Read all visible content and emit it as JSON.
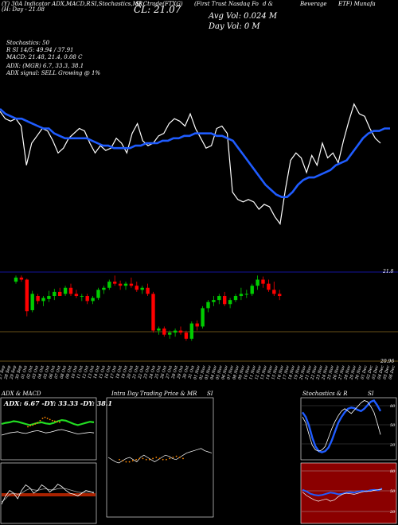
{
  "header": {
    "line1": [
      "(Y) 30A Indicator ADX,MACD,R",
      "SI,Stochastics,MR",
      "SI Ctrade(FTXG)",
      "(First Trust Nasdaq Fo",
      "d &",
      "Beverage",
      "ETF) Munafa"
    ],
    "cl_label": "CL: 21.07",
    "day_range": "(H: Day - 21.08",
    "avg_vol": "Avg Vol: 0.024  M",
    "day_vol": "Day Vol: 0  M",
    "stoch": "Stochastics: 50",
    "rsi": "R    SI 14/5: 49.94  / 37.91",
    "macd": "MACD: 21.48, 21.4, 0.08  C",
    "adx": "ADX:                      (MGR) 6.7, 33.3,  38.1",
    "signal": "ADX  signal: SELL  Growing @ 1%"
  },
  "price_chart": {
    "y_labels": [
      "21.8",
      "20.96"
    ],
    "x_labels": [
      "27 Sep",
      "28 Sep",
      "29 Sep",
      "30 Sep",
      "01 Oct",
      "02 Oct",
      "03 Oct",
      "04 Oct",
      "05 Oct",
      "06 Oct",
      "07 Oct",
      "08 Oct",
      "09 Oct",
      "10 Oct",
      "11 Oct",
      "12 Oct",
      "13 Oct",
      "14 Oct",
      "15 Oct",
      "16 Oct",
      "17 Oct",
      "18 Oct",
      "19 Oct",
      "20 Oct",
      "21 Oct",
      "22 Oct",
      "23 Oct",
      "24 Oct",
      "25 Oct",
      "26 Oct",
      "27 Oct",
      "28 Oct",
      "29 Oct",
      "30 Oct",
      "31 Oct",
      "01 Nov",
      "02 Nov",
      "03 Nov",
      "04 Nov",
      "05 Nov",
      "06 Nov",
      "07 Nov",
      "08 Nov",
      "09 Nov",
      "10 Nov",
      "11 Nov",
      "12 Nov",
      "13 Nov",
      "14 Nov",
      "15 Nov",
      "16 Nov",
      "17 Nov",
      "18 Nov",
      "19 Nov",
      "20 Nov",
      "21 Nov",
      "22 Nov",
      "23 Nov",
      "24 Nov",
      "25 Nov",
      "26 Nov",
      "27 Nov",
      "28 Nov",
      "29 Nov",
      "30 Nov",
      "01 Dec",
      "02 Dec",
      "03 Dec",
      "04 Dec",
      "05 Dec",
      "06 Dec"
    ]
  },
  "panels": {
    "adx_title": "ADX  & MACD",
    "adx_values": "ADX: 6.67 -DY: 33.33 -DY: 38.1",
    "mrsi_title": "Intra  Day Trading Price  & MR",
    "mrsi_title2": "SI",
    "stoch_title": "Stochastics & R",
    "stoch_title2": "SI",
    "stoch_ticks": [
      "80",
      "50",
      "20"
    ],
    "rsi_ticks": [
      "80",
      "50",
      "20"
    ]
  },
  "chart_data": {
    "type": "line",
    "line_series": {
      "name": "",
      "values": [
        21.77,
        21.74,
        21.73,
        21.74,
        21.71,
        21.55,
        21.64,
        21.67,
        21.7,
        21.69,
        21.65,
        21.6,
        21.62,
        21.66,
        21.68,
        21.7,
        21.69,
        21.64,
        21.6,
        21.63,
        21.61,
        21.62,
        21.66,
        21.64,
        21.6,
        21.68,
        21.72,
        21.65,
        21.63,
        21.64,
        21.67,
        21.68,
        21.72,
        21.74,
        21.73,
        21.71,
        21.76,
        21.7,
        21.66,
        21.62,
        21.63,
        21.7,
        21.71,
        21.68,
        21.44,
        21.41,
        21.4,
        21.41,
        21.4,
        21.37,
        21.39,
        21.38,
        21.34,
        21.31,
        21.45,
        21.57,
        21.6,
        21.58,
        21.52,
        21.59,
        21.55,
        21.64,
        21.58,
        21.6,
        21.56,
        21.65,
        21.73,
        21.8,
        21.76,
        21.75,
        21.7,
        21.66,
        21.64
      ]
    },
    "ma_series": {
      "name": "",
      "values": [
        21.78,
        21.76,
        21.75,
        21.74,
        21.74,
        21.73,
        21.72,
        21.71,
        21.7,
        21.7,
        21.68,
        21.67,
        21.66,
        21.66,
        21.66,
        21.66,
        21.66,
        21.65,
        21.64,
        21.63,
        21.63,
        21.62,
        21.62,
        21.62,
        21.62,
        21.63,
        21.63,
        21.64,
        21.64,
        21.64,
        21.65,
        21.65,
        21.66,
        21.66,
        21.67,
        21.67,
        21.68,
        21.68,
        21.68,
        21.68,
        21.67,
        21.67,
        21.66,
        21.65,
        21.62,
        21.59,
        21.56,
        21.53,
        21.5,
        21.47,
        21.45,
        21.43,
        21.42,
        21.42,
        21.44,
        21.47,
        21.49,
        21.5,
        21.5,
        21.51,
        21.52,
        21.53,
        21.55,
        21.56,
        21.57,
        21.6,
        21.63,
        21.66,
        21.68,
        21.69,
        21.69,
        21.7,
        21.7
      ]
    },
    "line_y_range": [
      21.25,
      21.9
    ],
    "candles": {
      "y_range": [
        20.96,
        21.85
      ],
      "colors": {
        "up": "#00cc00",
        "down": "#ff0000"
      },
      "ohlc": [
        [
          21.74,
          21.8,
          21.72,
          21.78
        ],
        [
          21.78,
          21.8,
          21.74,
          21.76
        ],
        [
          21.76,
          21.77,
          21.4,
          21.45
        ],
        [
          21.46,
          21.65,
          21.44,
          21.62
        ],
        [
          21.6,
          21.62,
          21.52,
          21.55
        ],
        [
          21.55,
          21.6,
          21.5,
          21.58
        ],
        [
          21.57,
          21.65,
          21.54,
          21.6
        ],
        [
          21.6,
          21.67,
          21.56,
          21.64
        ],
        [
          21.64,
          21.68,
          21.6,
          21.6
        ],
        [
          21.62,
          21.7,
          21.6,
          21.68
        ],
        [
          21.68,
          21.72,
          21.6,
          21.62
        ],
        [
          21.62,
          21.66,
          21.58,
          21.6
        ],
        [
          21.6,
          21.62,
          21.55,
          21.6
        ],
        [
          21.6,
          21.62,
          21.52,
          21.55
        ],
        [
          21.55,
          21.6,
          21.52,
          21.58
        ],
        [
          21.58,
          21.68,
          21.56,
          21.66
        ],
        [
          21.66,
          21.7,
          21.62,
          21.68
        ],
        [
          21.68,
          21.76,
          21.66,
          21.74
        ],
        [
          21.74,
          21.8,
          21.7,
          21.72
        ],
        [
          21.72,
          21.75,
          21.66,
          21.7
        ],
        [
          21.7,
          21.74,
          21.66,
          21.72
        ],
        [
          21.72,
          21.78,
          21.68,
          21.7
        ],
        [
          21.7,
          21.74,
          21.64,
          21.66
        ],
        [
          21.66,
          21.7,
          21.62,
          21.68
        ],
        [
          21.68,
          21.72,
          21.6,
          21.62
        ],
        [
          21.62,
          21.64,
          21.24,
          21.26
        ],
        [
          21.26,
          21.3,
          21.22,
          21.28
        ],
        [
          21.28,
          21.3,
          21.2,
          21.22
        ],
        [
          21.22,
          21.26,
          21.18,
          21.24
        ],
        [
          21.24,
          21.28,
          21.2,
          21.26
        ],
        [
          21.26,
          21.3,
          21.22,
          21.24
        ],
        [
          21.24,
          21.26,
          21.16,
          21.18
        ],
        [
          21.18,
          21.35,
          21.16,
          21.33
        ],
        [
          21.33,
          21.36,
          21.26,
          21.3
        ],
        [
          21.3,
          21.5,
          21.28,
          21.48
        ],
        [
          21.48,
          21.56,
          21.44,
          21.54
        ],
        [
          21.54,
          21.6,
          21.5,
          21.56
        ],
        [
          21.56,
          21.62,
          21.52,
          21.6
        ],
        [
          21.6,
          21.64,
          21.5,
          21.52
        ],
        [
          21.52,
          21.58,
          21.48,
          21.56
        ],
        [
          21.56,
          21.62,
          21.54,
          21.6
        ],
        [
          21.6,
          21.68,
          21.56,
          21.62
        ],
        [
          21.62,
          21.66,
          21.58,
          21.62
        ],
        [
          21.62,
          21.72,
          21.6,
          21.7
        ],
        [
          21.7,
          21.8,
          21.66,
          21.76
        ],
        [
          21.76,
          21.79,
          21.68,
          21.72
        ],
        [
          21.72,
          21.76,
          21.64,
          21.66
        ],
        [
          21.66,
          21.74,
          21.6,
          21.62
        ],
        [
          21.62,
          21.66,
          21.56,
          21.6
        ]
      ]
    },
    "adx_lines": {
      "green": [
        60,
        62,
        63,
        65,
        64,
        62,
        60,
        58,
        60,
        62,
        63,
        61,
        60,
        62,
        65,
        67,
        66,
        63,
        60,
        58,
        60,
        62,
        64,
        63
      ],
      "white": [
        40,
        42,
        44,
        45,
        46,
        44,
        43,
        45,
        47,
        48,
        46,
        44,
        45,
        47,
        49,
        50,
        48,
        46,
        44,
        42,
        43,
        44,
        45,
        44
      ],
      "orange_dots": [
        55,
        57,
        58,
        60,
        62,
        66,
        70,
        72,
        70,
        68,
        66,
        65,
        64,
        63
      ]
    },
    "macd_lines": {
      "white": [
        30,
        45,
        55,
        50,
        40,
        55,
        65,
        60,
        50,
        55,
        65,
        60,
        52,
        58,
        66,
        62,
        55,
        50,
        48,
        45,
        50,
        55,
        53,
        50
      ],
      "gray": [
        34,
        40,
        48,
        50,
        48,
        50,
        55,
        58,
        56,
        55,
        57,
        58,
        56,
        56,
        58,
        59,
        58,
        56,
        54,
        52,
        51,
        52,
        52,
        52
      ]
    },
    "mrsi_lines": {
      "white": [
        50,
        48,
        46,
        45,
        47,
        49,
        50,
        48,
        46,
        50,
        52,
        50,
        48,
        46,
        48,
        50,
        52,
        51,
        49,
        48,
        50,
        52,
        54,
        55,
        56,
        57,
        58,
        56,
        55,
        54
      ],
      "orange_dots": [
        48,
        47,
        46,
        46,
        47,
        48,
        49,
        49,
        48,
        48,
        49,
        50,
        49,
        48,
        48,
        49,
        50,
        51,
        50,
        49
      ]
    },
    "stoch_lines": {
      "blue": [
        78,
        70,
        55,
        35,
        20,
        12,
        10,
        12,
        18,
        30,
        45,
        60,
        70,
        78,
        84,
        86,
        85,
        82,
        80,
        84,
        90,
        96,
        98,
        90,
        80
      ],
      "white": [
        70,
        60,
        40,
        22,
        14,
        12,
        14,
        20,
        35,
        50,
        62,
        72,
        80,
        84,
        80,
        76,
        82,
        88,
        94,
        98,
        96,
        88,
        78,
        60,
        40
      ]
    },
    "rsi_lines": {
      "blue": [
        56,
        53,
        49,
        47,
        46,
        47,
        49,
        51,
        50,
        48,
        49,
        51,
        52,
        51,
        53,
        54,
        53,
        55,
        56,
        55,
        58
      ],
      "white": [
        52,
        46,
        42,
        38,
        36,
        38,
        40,
        36,
        38,
        44,
        48,
        50,
        49,
        48,
        50,
        52,
        54,
        53,
        55,
        56,
        57
      ]
    }
  }
}
